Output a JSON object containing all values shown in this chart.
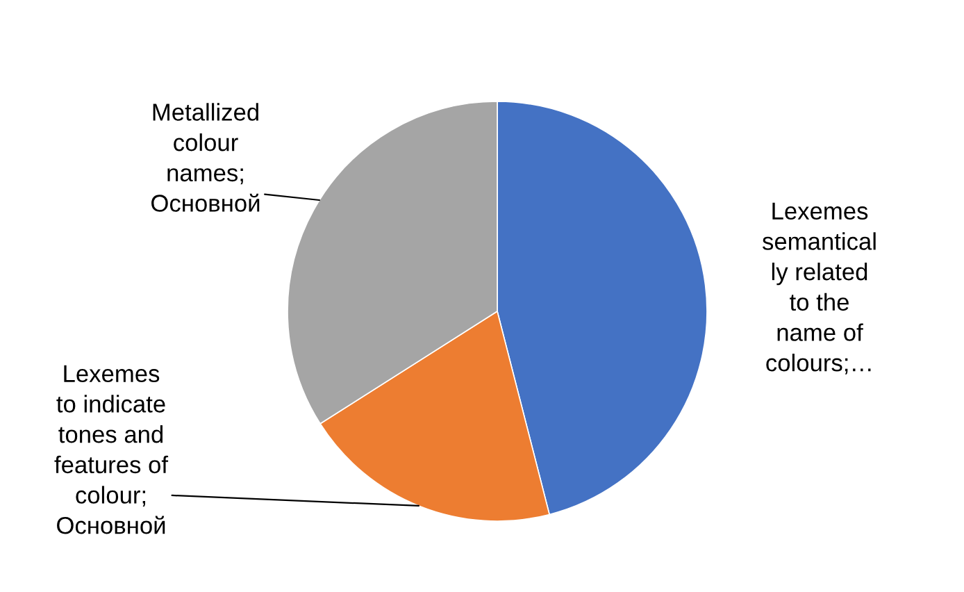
{
  "chart_data": {
    "type": "pie",
    "categories": [
      "Lexemes\nsemantical\nly related\nto the\nname of\ncolours;…",
      "Lexemes\nto indicate\ntones and\nfeatures of\ncolour;\nОсновной",
      "Metallized\ncolour\nnames;\nОсновной"
    ],
    "values": [
      46,
      20,
      34
    ],
    "colors": [
      "#4472c4",
      "#ed7d31",
      "#a5a5a5"
    ],
    "legend": false
  }
}
